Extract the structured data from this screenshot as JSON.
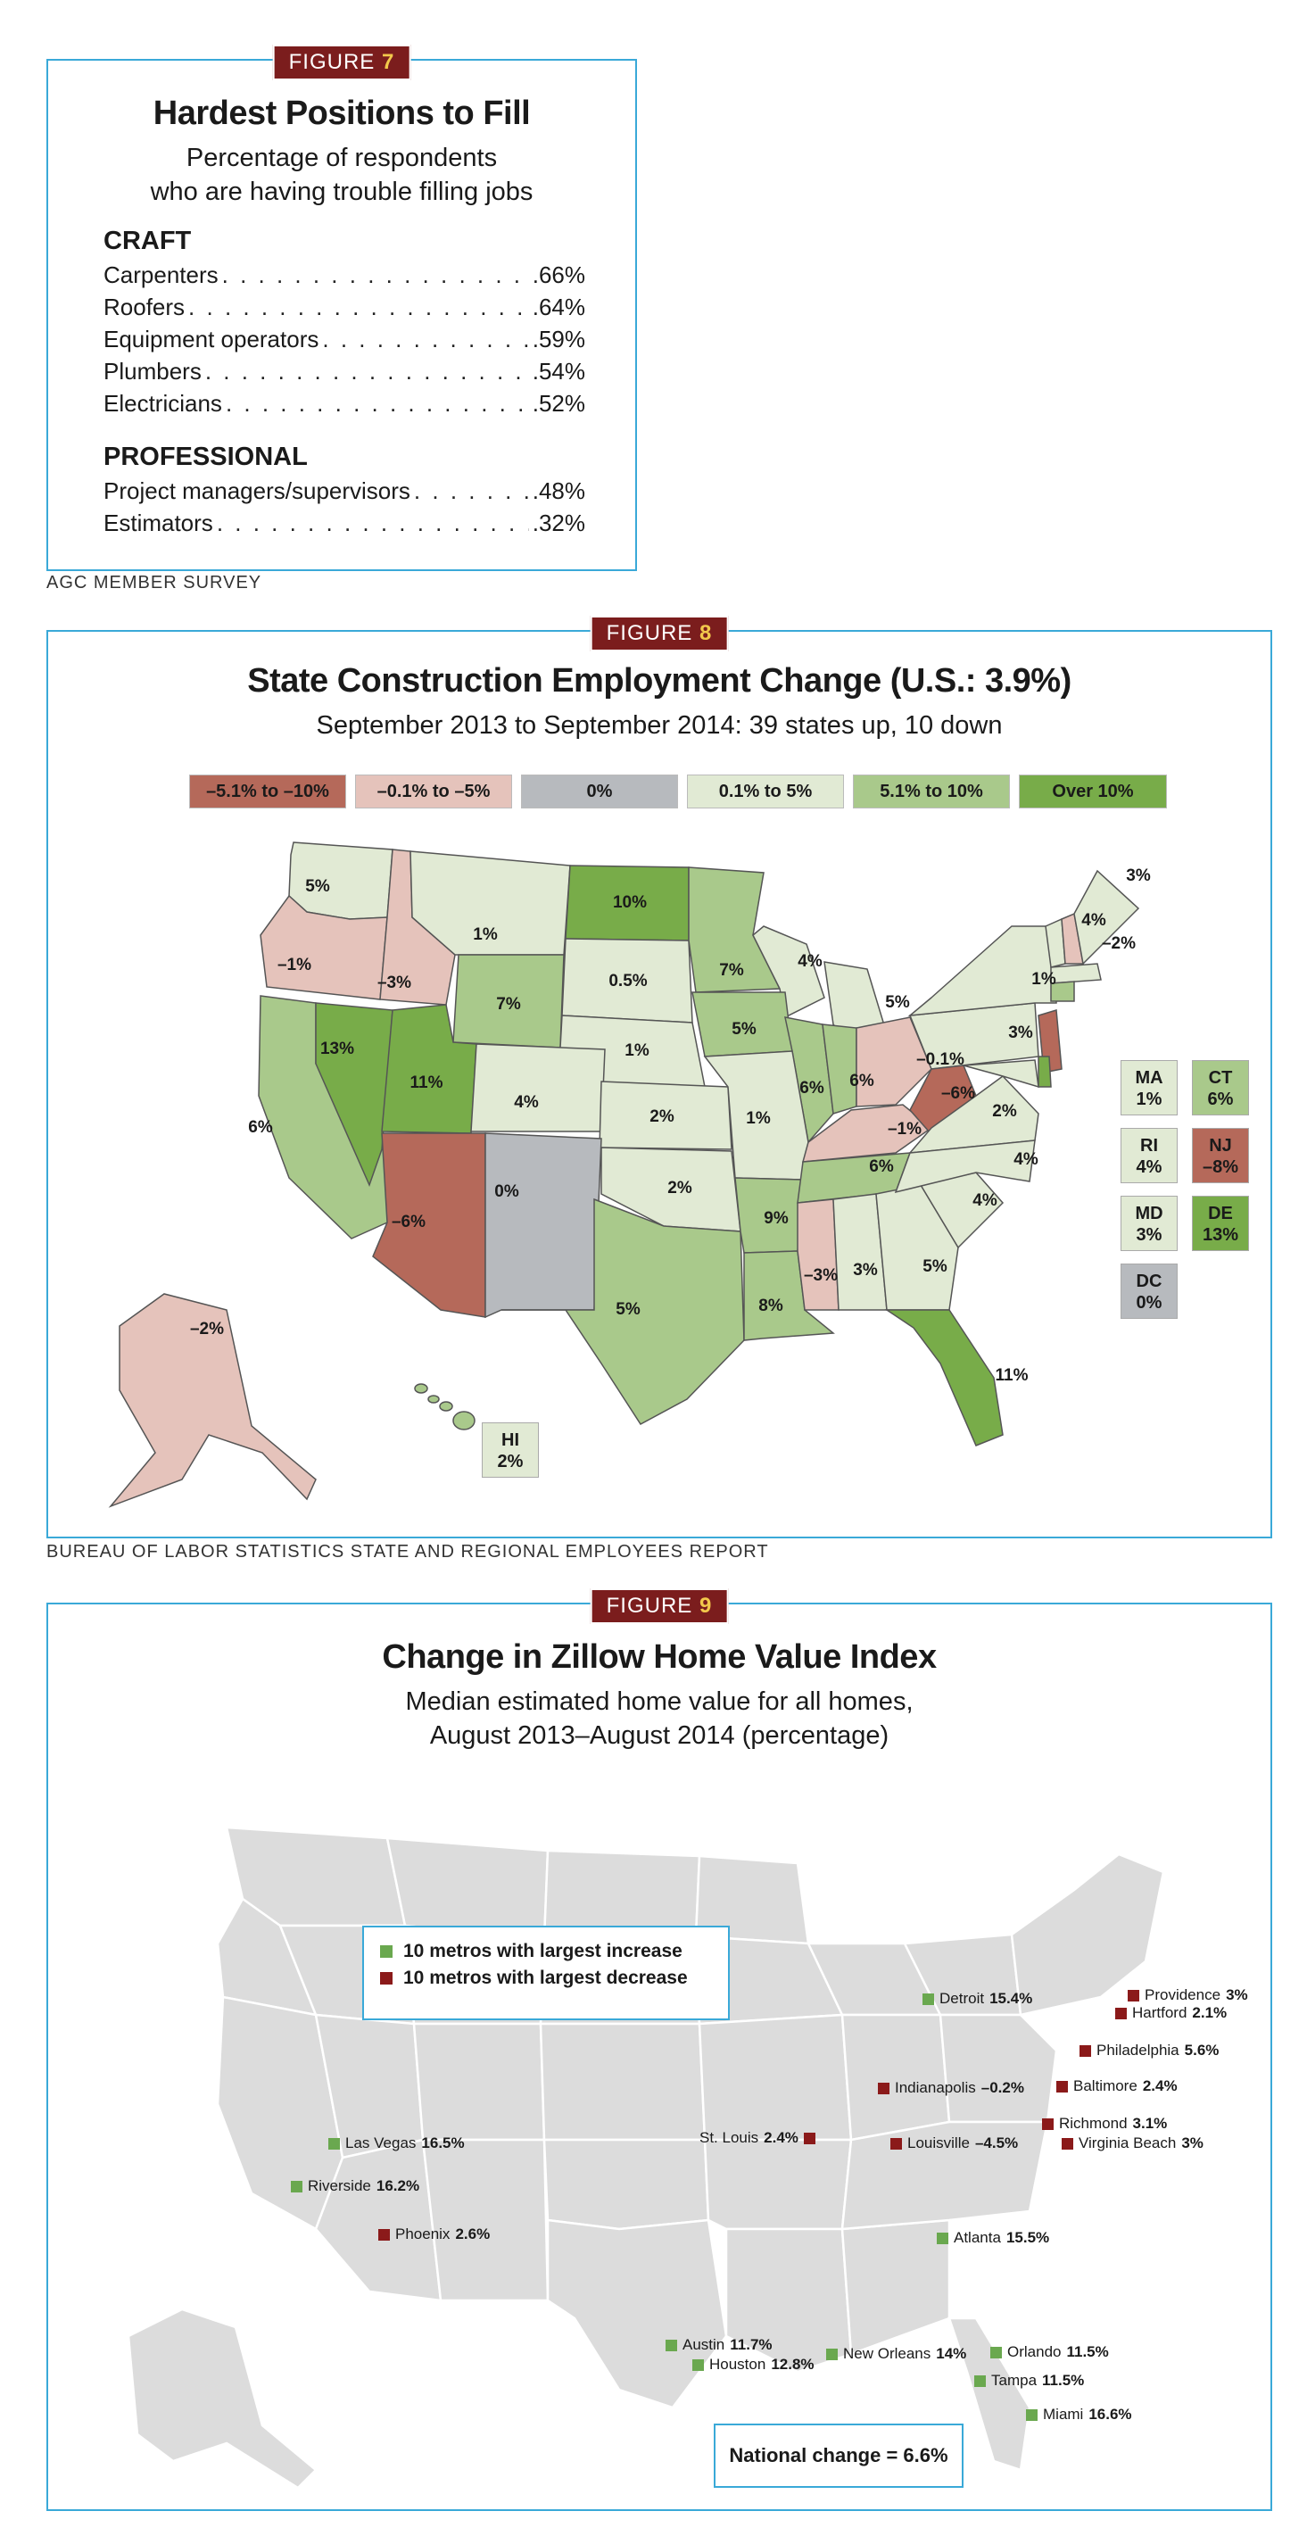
{
  "fig7": {
    "tag_word": "FIGURE",
    "tag_num": "7",
    "title": "Hardest Positions to Fill",
    "subtitle_1": "Percentage of respondents",
    "subtitle_2": "who are having trouble filling jobs",
    "craft_header": "CRAFT",
    "craft": [
      {
        "label": "Carpenters",
        "value": ".66%"
      },
      {
        "label": "Roofers",
        "value": ".64%"
      },
      {
        "label": "Equipment operators",
        "value": ".59%"
      },
      {
        "label": "Plumbers",
        "value": ".54%"
      },
      {
        "label": "Electricians",
        "value": ".52%"
      }
    ],
    "prof_header": "PROFESSIONAL",
    "professional": [
      {
        "label": "Project managers/supervisors",
        "value": ".48%"
      },
      {
        "label": "Estimators",
        "value": ".32%"
      }
    ],
    "source": "AGC MEMBER SURVEY"
  },
  "fig8": {
    "tag_word": "FIGURE",
    "tag_num": "8",
    "title": "State Construction Employment Change (U.S.: 3.9%)",
    "subtitle": "September 2013 to September 2014: 39 states up, 10 down",
    "legend": [
      {
        "label": "–5.1% to –10%",
        "color": "#b5695a",
        "text_color": "#1a1a1a"
      },
      {
        "label": "–0.1% to –5%",
        "color": "#e5c3bb",
        "text_color": "#1a1a1a"
      },
      {
        "label": "0%",
        "color": "#b7babe",
        "text_color": "#1a1a1a"
      },
      {
        "label": "0.1% to 5%",
        "color": "#e1ead4",
        "text_color": "#1a1a1a"
      },
      {
        "label": "5.1% to 10%",
        "color": "#a9c98b",
        "text_color": "#1a1a1a"
      },
      {
        "label": "Over 10%",
        "color": "#78ac49",
        "text_color": "#1a1a1a"
      }
    ],
    "states": [
      {
        "abbr": "WA",
        "value": "5%"
      },
      {
        "abbr": "OR",
        "value": "–1%"
      },
      {
        "abbr": "ID",
        "value": "–3%"
      },
      {
        "abbr": "MT",
        "value": "1%"
      },
      {
        "abbr": "ND",
        "value": "10%"
      },
      {
        "abbr": "MN",
        "value": "7%"
      },
      {
        "abbr": "WI",
        "value": "4%"
      },
      {
        "abbr": "MI",
        "value": "5%"
      },
      {
        "abbr": "NY",
        "value": "1%"
      },
      {
        "abbr": "VT",
        "value": "4%"
      },
      {
        "abbr": "NH",
        "value": "–2%"
      },
      {
        "abbr": "ME",
        "value": "3%"
      },
      {
        "abbr": "WY",
        "value": "7%"
      },
      {
        "abbr": "SD",
        "value": "0.5%"
      },
      {
        "abbr": "NE",
        "value": "1%"
      },
      {
        "abbr": "IA",
        "value": "5%"
      },
      {
        "abbr": "IL",
        "value": "6%"
      },
      {
        "abbr": "IN",
        "value": "6%"
      },
      {
        "abbr": "OH",
        "value": "–0.1%"
      },
      {
        "abbr": "PA",
        "value": "3%"
      },
      {
        "abbr": "CA",
        "value": "6%"
      },
      {
        "abbr": "NV",
        "value": "13%"
      },
      {
        "abbr": "UT",
        "value": "11%"
      },
      {
        "abbr": "CO",
        "value": "4%"
      },
      {
        "abbr": "KS",
        "value": "2%"
      },
      {
        "abbr": "MO",
        "value": "1%"
      },
      {
        "abbr": "KY",
        "value": "–1%"
      },
      {
        "abbr": "WV",
        "value": "–6%"
      },
      {
        "abbr": "VA",
        "value": "2%"
      },
      {
        "abbr": "AZ",
        "value": "–6%"
      },
      {
        "abbr": "NM",
        "value": "0%"
      },
      {
        "abbr": "OK",
        "value": "2%"
      },
      {
        "abbr": "AR",
        "value": "9%"
      },
      {
        "abbr": "TN",
        "value": "6%"
      },
      {
        "abbr": "NC",
        "value": "4%"
      },
      {
        "abbr": "SC",
        "value": "4%"
      },
      {
        "abbr": "TX",
        "value": "5%"
      },
      {
        "abbr": "LA",
        "value": "8%"
      },
      {
        "abbr": "MS",
        "value": "–3%"
      },
      {
        "abbr": "AL",
        "value": "3%"
      },
      {
        "abbr": "GA",
        "value": "5%"
      },
      {
        "abbr": "FL",
        "value": "11%"
      },
      {
        "abbr": "AK",
        "value": "–2%"
      }
    ],
    "side_boxes": [
      {
        "abbr": "MA",
        "value": "1%"
      },
      {
        "abbr": "CT",
        "value": "6%"
      },
      {
        "abbr": "RI",
        "value": "4%"
      },
      {
        "abbr": "NJ",
        "value": "–8%"
      },
      {
        "abbr": "MD",
        "value": "3%"
      },
      {
        "abbr": "DE",
        "value": "13%"
      },
      {
        "abbr": "DC",
        "value": "0%"
      },
      {
        "abbr": "HI",
        "value": "2%"
      }
    ],
    "source": "BUREAU OF LABOR STATISTICS STATE AND REGIONAL EMPLOYEES REPORT"
  },
  "fig9": {
    "tag_word": "FIGURE",
    "tag_num": "9",
    "title": "Change in Zillow Home Value Index",
    "subtitle_1": "Median estimated home value for all homes,",
    "subtitle_2": "August 2013–August 2014 (percentage)",
    "legend_increase": "10 metros with largest increase",
    "legend_decrease": "10 metros with largest decrease",
    "increase_color": "#6aa84f",
    "decrease_color": "#8b1a1a",
    "metros": [
      {
        "name": "Detroit",
        "value": "15.4%",
        "kind": "up"
      },
      {
        "name": "Providence",
        "value": "3%",
        "kind": "down"
      },
      {
        "name": "Hartford",
        "value": "2.1%",
        "kind": "down"
      },
      {
        "name": "Philadelphia",
        "value": "5.6%",
        "kind": "down"
      },
      {
        "name": "Indianapolis",
        "value": "–0.2%",
        "kind": "down"
      },
      {
        "name": "Baltimore",
        "value": "2.4%",
        "kind": "down"
      },
      {
        "name": "Richmond",
        "value": "3.1%",
        "kind": "down"
      },
      {
        "name": "St. Louis",
        "value": "2.4%",
        "kind": "down"
      },
      {
        "name": "Louisville",
        "value": "–4.5%",
        "kind": "down"
      },
      {
        "name": "Virginia Beach",
        "value": "3%",
        "kind": "down"
      },
      {
        "name": "Las Vegas",
        "value": "16.5%",
        "kind": "up"
      },
      {
        "name": "Riverside",
        "value": "16.2%",
        "kind": "up"
      },
      {
        "name": "Phoenix",
        "value": "2.6%",
        "kind": "down"
      },
      {
        "name": "Atlanta",
        "value": "15.5%",
        "kind": "up"
      },
      {
        "name": "Austin",
        "value": "11.7%",
        "kind": "up"
      },
      {
        "name": "Houston",
        "value": "12.8%",
        "kind": "up"
      },
      {
        "name": "New Orleans",
        "value": "14%",
        "kind": "up"
      },
      {
        "name": "Orlando",
        "value": "11.5%",
        "kind": "up"
      },
      {
        "name": "Tampa",
        "value": "11.5%",
        "kind": "up"
      },
      {
        "name": "Miami",
        "value": "16.6%",
        "kind": "up"
      }
    ],
    "national": "National change = 6.6%"
  }
}
